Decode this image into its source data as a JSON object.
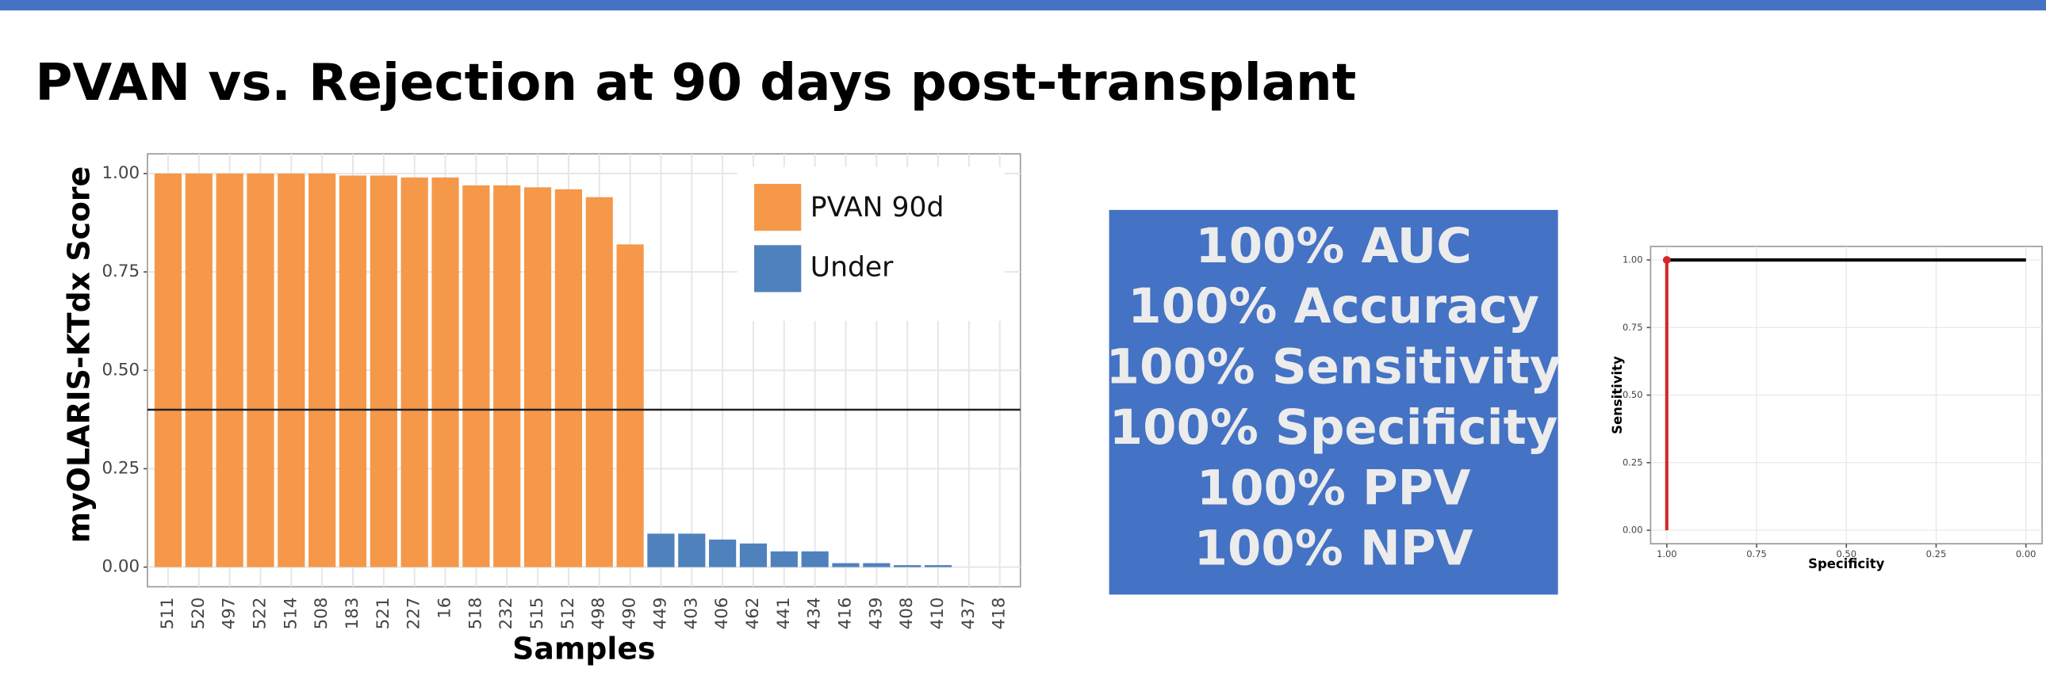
{
  "title": "PVAN vs. Rejection at 90 days post-transplant",
  "stats": [
    "100% AUC",
    "100% Accuracy",
    "100% Sensitivity",
    "100% Specificity",
    "100% PPV",
    "100% NPV"
  ],
  "chart_data": [
    {
      "type": "bar",
      "ylabel": "myOLARIS-KTdx Score",
      "xlabel": "Samples",
      "categories": [
        "511",
        "520",
        "497",
        "522",
        "514",
        "508",
        "183",
        "521",
        "227",
        "16",
        "518",
        "232",
        "515",
        "512",
        "498",
        "490",
        "449",
        "403",
        "406",
        "462",
        "441",
        "434",
        "416",
        "439",
        "408",
        "410",
        "437",
        "418"
      ],
      "series": [
        {
          "name": "PVAN 90d",
          "color": "#f5984a",
          "values": [
            1.0,
            1.0,
            1.0,
            1.0,
            1.0,
            1.0,
            0.995,
            0.995,
            0.99,
            0.99,
            0.97,
            0.97,
            0.965,
            0.96,
            0.94,
            0.82,
            null,
            null,
            null,
            null,
            null,
            null,
            null,
            null,
            null,
            null,
            null,
            null
          ]
        },
        {
          "name": "Under",
          "color": "#4f81bd",
          "values": [
            null,
            null,
            null,
            null,
            null,
            null,
            null,
            null,
            null,
            null,
            null,
            null,
            null,
            null,
            null,
            null,
            0.085,
            0.085,
            0.07,
            0.06,
            0.04,
            0.04,
            0.01,
            0.01,
            0.005,
            0.005,
            0,
            0
          ]
        }
      ],
      "hline": 0.4,
      "ylim": [
        -0.05,
        1.05
      ],
      "yticks": [
        {
          "value": 0,
          "label": "0.00"
        },
        {
          "value": 0.25,
          "label": "0.25"
        },
        {
          "value": 0.5,
          "label": "0.50"
        },
        {
          "value": 0.75,
          "label": "0.75"
        },
        {
          "value": 1,
          "label": "1.00"
        }
      ],
      "grid": true,
      "legend": "top-right"
    },
    {
      "type": "line",
      "xlabel": "Specificity",
      "ylabel": "Sensitivity",
      "series": [
        {
          "color": "#d62728",
          "x": [
            1,
            1
          ],
          "values": [
            0,
            1
          ],
          "markers": true
        },
        {
          "color": "#000000",
          "x": [
            1,
            0
          ],
          "values": [
            1,
            1
          ]
        }
      ],
      "xlim": [
        1.045,
        -0.045
      ],
      "ylim": [
        -0.05,
        1.05
      ],
      "xticks": [
        {
          "value": 1,
          "label": "1.00"
        },
        {
          "value": 0.75,
          "label": "0.75"
        },
        {
          "value": 0.5,
          "label": "0.50"
        },
        {
          "value": 0.25,
          "label": "0.25"
        },
        {
          "value": 0,
          "label": "0.00"
        }
      ],
      "yticks": [
        {
          "value": 0,
          "label": "0.00"
        },
        {
          "value": 0.25,
          "label": "0.25"
        },
        {
          "value": 0.5,
          "label": "0.50"
        },
        {
          "value": 0.75,
          "label": "0.75"
        },
        {
          "value": 1,
          "label": "1.00"
        }
      ],
      "grid": true
    }
  ]
}
